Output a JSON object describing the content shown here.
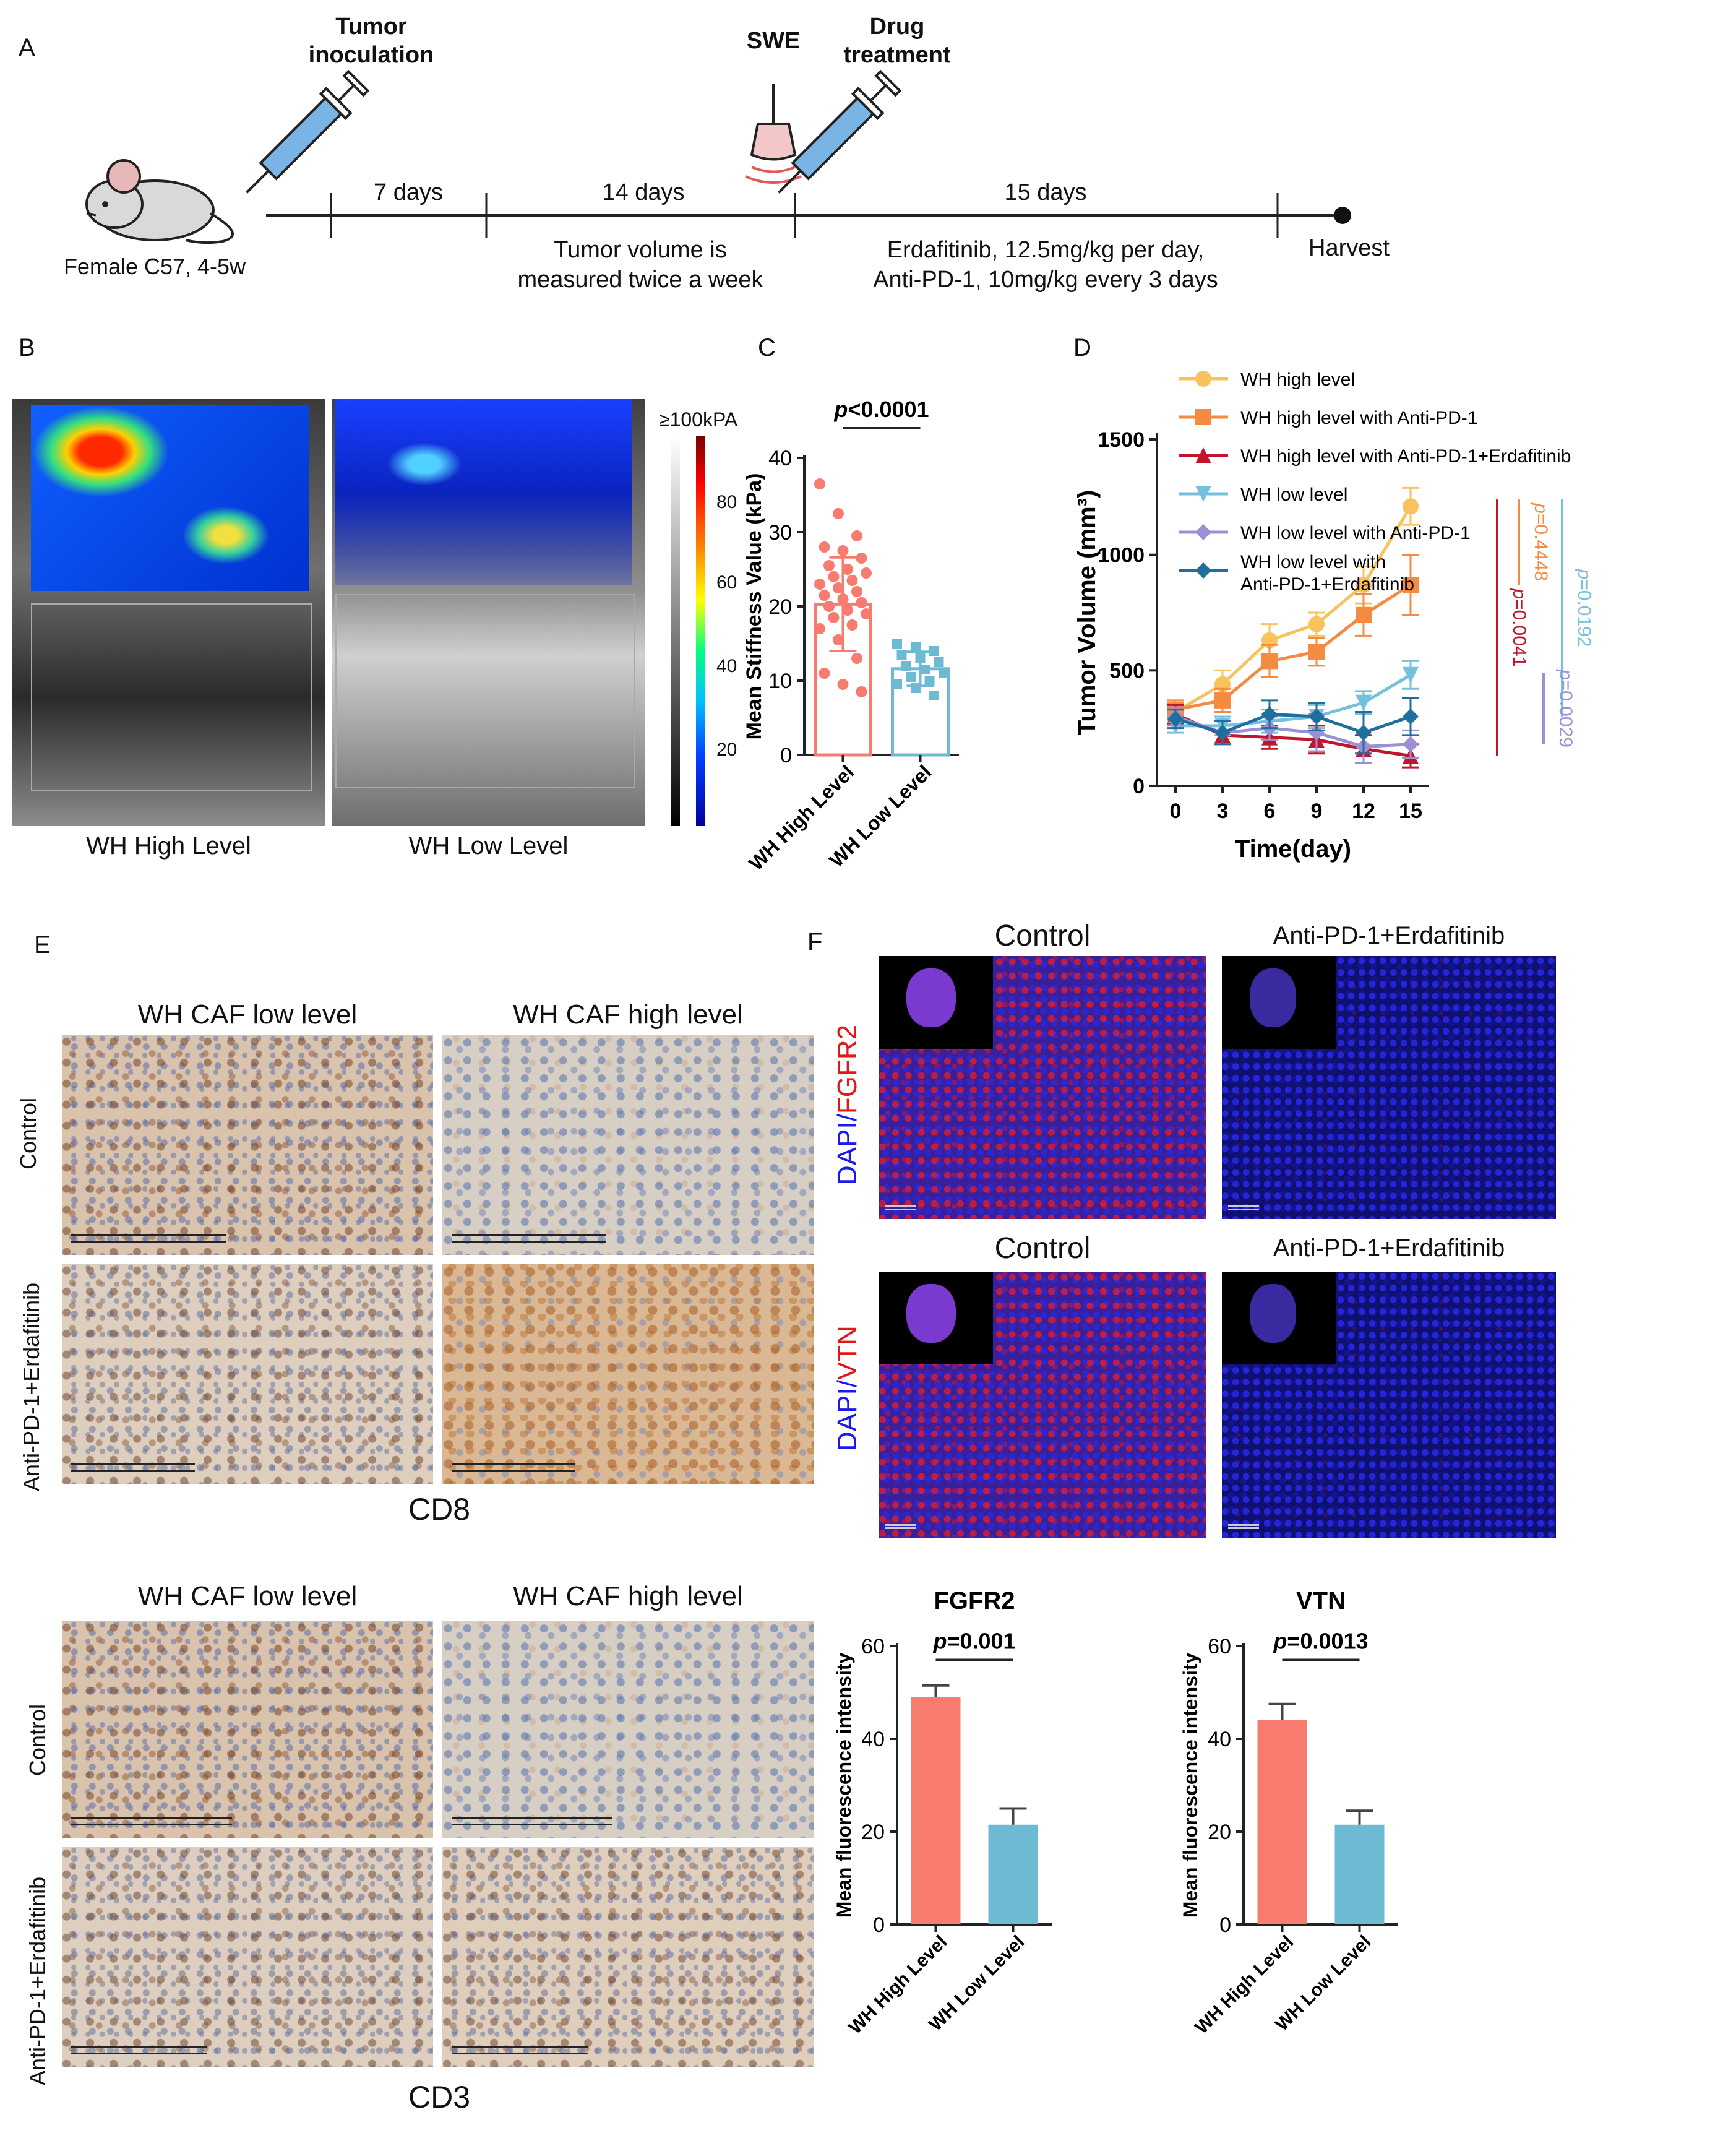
{
  "panel_A": {
    "letter": "A",
    "tumor_inoculation": [
      "Tumor",
      "inoculation"
    ],
    "swe": "SWE",
    "drug_treatment": [
      "Drug",
      "treatment"
    ],
    "mouse_label": "Female C57, 4-5w",
    "intervals": [
      "7 days",
      "14 days",
      "15 days"
    ],
    "note1": [
      "Tumor volume is",
      "measured twice a week"
    ],
    "note2": [
      "Erdafitinib, 12.5mg/kg per day,",
      "Anti-PD-1, 10mg/kg every 3 days"
    ],
    "harvest": "Harvest"
  },
  "panel_B": {
    "letter": "B",
    "labels": [
      "WH High Level",
      "WH Low Level"
    ],
    "colorbar_title": "≥100kPA",
    "colorbar_ticks": [
      "80",
      "60",
      "40",
      "20"
    ]
  },
  "panel_C": {
    "letter": "C",
    "pvalue": "p<0.0001",
    "p_italic": "p",
    "p_rest": "<0.0001"
  },
  "panel_D": {
    "letter": "D"
  },
  "panel_E": {
    "letter": "E",
    "cd8_cols": [
      "WH CAF low level",
      "WH CAF high level"
    ],
    "cd3_cols": [
      "WH CAF low level",
      "WH CAF high level"
    ],
    "rows": [
      "Control",
      "Anti-PD-1+Erdafitinib"
    ],
    "cd8": "CD8",
    "cd3": "CD3"
  },
  "panel_F": {
    "letter": "F",
    "cols_top": [
      "Control",
      "Anti-PD-1+Erdafitinib"
    ],
    "cols_bottom": [
      "Control",
      "Anti-PD-1+Erdafitinib"
    ],
    "row1_dapi": "DAPI/",
    "row1_marker": "FGFR2",
    "row2_dapi": "DAPI/",
    "row2_marker": "VTN"
  },
  "colors": {
    "red_bar": "#f77b6f",
    "blue_bar": "#6fbad3",
    "c_red": "#f57d71",
    "c_blue": "#5ba6d6"
  },
  "chart_data": [
    {
      "id": "C",
      "type": "bar",
      "categories": [
        "WH High Level",
        "WH Low Level"
      ],
      "values": [
        20.3,
        11.6
      ],
      "errors": [
        6.3,
        2.3
      ],
      "ylabel": "Mean Stiffness Value (kPa)",
      "ylim": [
        0,
        40
      ],
      "yticks": [
        0,
        10,
        20,
        30,
        40
      ],
      "points": [
        [
          36.5,
          32.5,
          29.5,
          28,
          27.5,
          26.5,
          25.5,
          25,
          24.5,
          24,
          23.5,
          23,
          22.5,
          22,
          21.5,
          21,
          20.5,
          20,
          19.5,
          19,
          18.5,
          17.5,
          17,
          15.5,
          13,
          11,
          9.5,
          8.5
        ],
        [
          15,
          14.5,
          14,
          13.5,
          13,
          12.5,
          12,
          11.5,
          11,
          10.5,
          10,
          9.5,
          9,
          8
        ]
      ],
      "pvalue": "p<0.0001"
    },
    {
      "id": "D",
      "type": "line",
      "x": [
        0,
        3,
        6,
        9,
        12,
        15
      ],
      "xlabel": "Time(day)",
      "ylabel": "Tumor Volume (mm³)",
      "ylim": [
        0,
        1500
      ],
      "yticks": [
        0,
        500,
        1000,
        1500
      ],
      "series": [
        {
          "name": "WH high level",
          "color": "#f8c25c",
          "marker": "circle",
          "values": [
            320,
            440,
            630,
            700,
            870,
            1210
          ],
          "err": [
            40,
            60,
            70,
            50,
            80,
            80
          ]
        },
        {
          "name": "WH high level with Anti-PD-1",
          "color": "#f58a42",
          "marker": "square",
          "values": [
            330,
            370,
            540,
            580,
            740,
            870
          ],
          "err": [
            40,
            50,
            70,
            60,
            90,
            130
          ]
        },
        {
          "name": "WH high level with Anti-PD-1+Erdafitinib",
          "color": "#c0152a",
          "marker": "triangle",
          "values": [
            310,
            220,
            210,
            200,
            160,
            130
          ],
          "err": [
            40,
            40,
            50,
            60,
            60,
            50
          ]
        },
        {
          "name": "WH low level",
          "color": "#74c0de",
          "marker": "triangle-down",
          "values": [
            260,
            260,
            280,
            300,
            360,
            480
          ],
          "err": [
            30,
            40,
            50,
            50,
            50,
            60
          ]
        },
        {
          "name": "WH low level with Anti-PD-1",
          "color": "#9c8fd4",
          "marker": "diamond",
          "values": [
            300,
            230,
            250,
            230,
            170,
            180
          ],
          "err": [
            40,
            50,
            50,
            80,
            70,
            60
          ]
        },
        {
          "name": "WH low level with Anti-PD-1+Erdafitinib",
          "legend_lines": [
            "WH low level with",
            "Anti-PD-1+Erdafitinib"
          ],
          "color": "#1f6e9c",
          "marker": "diamond",
          "values": [
            290,
            230,
            310,
            300,
            230,
            300
          ],
          "err": [
            40,
            50,
            60,
            60,
            90,
            80
          ]
        }
      ],
      "pvalues": [
        {
          "text": "p=0.4448",
          "italic": "p",
          "rest": "=0.4448",
          "color": "#f58a42"
        },
        {
          "text": "p=0.0041",
          "italic": "p",
          "rest": "=0.0041",
          "color": "#c0152a"
        },
        {
          "text": "p=0.0192",
          "italic": "p",
          "rest": "=0.0192",
          "color": "#74c0de"
        },
        {
          "text": "p=0.0029",
          "italic": "p",
          "rest": "=0.0029",
          "color": "#9c8fd4"
        }
      ]
    },
    {
      "id": "F-FGFR2",
      "type": "bar",
      "title": "FGFR2",
      "categories": [
        "WH High Level",
        "WH Low Level"
      ],
      "values": [
        49,
        21.5
      ],
      "errors": [
        2.5,
        3.5
      ],
      "ylabel": "Mean fluorescence intensity",
      "ylim": [
        0,
        60
      ],
      "yticks": [
        0,
        20,
        40,
        60
      ],
      "pvalue": "p=0.001",
      "p_rest": "=0.001"
    },
    {
      "id": "F-VTN",
      "type": "bar",
      "title": "VTN",
      "categories": [
        "WH High Level",
        "WH Low Level"
      ],
      "values": [
        44,
        21.5
      ],
      "errors": [
        3.5,
        3
      ],
      "ylabel": "Mean fluorescence intensity",
      "ylim": [
        0,
        60
      ],
      "yticks": [
        0,
        20,
        40,
        60
      ],
      "pvalue": "p=0.0013",
      "p_rest": "=0.0013"
    }
  ]
}
